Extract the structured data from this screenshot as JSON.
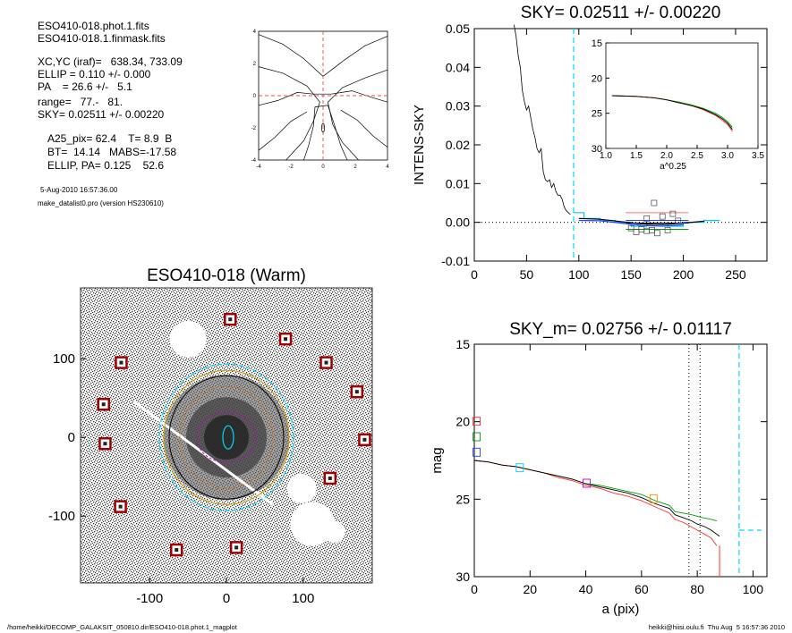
{
  "header_info": {
    "file1": "ESO410-018.phot.1.fits",
    "file2": "ESO410-018.1.finmask.fits",
    "xcyc": "XC,YC (iraf)=   638.34, 733.09",
    "ellip": "ELLIP = 0.110 +/- 0.000",
    "pa": "PA    = 26.6 +/-   5.1",
    "range": "range=   77.-   81.",
    "sky": "SKY= 0.02511 +/- 0.00220",
    "a25": "A25_pix= 62.4    T= 8.9  B",
    "bt": "BT=  14.14   MABS=-17.58",
    "ellip_pa": "ELLIP, PA= 0.125    52.6",
    "date": "5-Aug-2010 16:57:36.00",
    "program": "make_datalist0.pro (version HS230610)"
  },
  "footer": {
    "left": "/home/heikki/DECOMP_GALAKSIT_050810.dir/ESO410-018.phot.1_magplot",
    "right": "heikki@hiisi.oulu.fi  Thu Aug  5 16:57:36 2010"
  },
  "chart_data": [
    {
      "type": "line",
      "name": "contour",
      "xlim": [
        -4,
        4
      ],
      "ylim": [
        -4,
        4
      ],
      "xticks": [
        "-4",
        "-2",
        "0",
        "2",
        "4"
      ],
      "yticks": [
        "4",
        "2",
        "0",
        "-2",
        "-4"
      ],
      "contours": [
        [
          [
            -4,
            3.8
          ],
          [
            -2.5,
            3.2
          ],
          [
            -1.2,
            2.3
          ],
          [
            0,
            1.2
          ],
          [
            1.3,
            2.2
          ],
          [
            2.6,
            3.1
          ],
          [
            4,
            3.7
          ]
        ],
        [
          [
            -4,
            1.8
          ],
          [
            -2.5,
            1.4
          ],
          [
            -1,
            0.6
          ],
          [
            -0.2,
            -0.4
          ],
          [
            -0.6,
            -1.6
          ],
          [
            -1.2,
            -2.8
          ],
          [
            -2.3,
            -4
          ]
        ],
        [
          [
            4,
            1.6
          ],
          [
            2.6,
            1.1
          ],
          [
            1.2,
            0.5
          ],
          [
            0.3,
            -0.4
          ],
          [
            0.6,
            -1.8
          ],
          [
            1.2,
            -2.9
          ],
          [
            2.2,
            -4
          ]
        ],
        [
          [
            -4,
            -0.6
          ],
          [
            -2.8,
            -0.3
          ],
          [
            -1.6,
            0.2
          ],
          [
            -0.6,
            0.1
          ],
          [
            0.5,
            0.1
          ],
          [
            1.8,
            0.3
          ],
          [
            3,
            -0.1
          ],
          [
            4,
            -0.4
          ]
        ],
        [
          [
            -1.2,
            -4
          ],
          [
            -0.9,
            -3.1
          ],
          [
            -0.6,
            -1.9
          ],
          [
            -0.5,
            -0.7
          ],
          [
            0.3,
            -0.6
          ],
          [
            0.7,
            -1.8
          ],
          [
            1.1,
            -3.1
          ],
          [
            1.5,
            -4
          ]
        ],
        [
          [
            -4,
            -3.4
          ],
          [
            -3,
            -2.6
          ],
          [
            -2,
            -1.6
          ],
          [
            -1,
            -1
          ]
        ],
        [
          [
            4,
            -3.2
          ],
          [
            3.1,
            -2.5
          ],
          [
            2.1,
            -1.5
          ],
          [
            1.1,
            -0.9
          ]
        ]
      ]
    },
    {
      "type": "line",
      "title": "SKY= 0.02511 +/- 0.00220",
      "xlabel": "",
      "ylabel": "INTENS-SKY",
      "xlim": [
        0,
        280
      ],
      "ylim": [
        -0.01,
        0.05
      ],
      "xticks": [
        "0",
        "50",
        "100",
        "150",
        "200",
        "250"
      ],
      "yticks": [
        "0.05",
        "0.04",
        "0.03",
        "0.02",
        "0.01",
        "0.00",
        "-0.01"
      ],
      "profile": [
        [
          38,
          0.051
        ],
        [
          40,
          0.048
        ],
        [
          42,
          0.043
        ],
        [
          44,
          0.04
        ],
        [
          46,
          0.034
        ],
        [
          48,
          0.031
        ],
        [
          50,
          0.029
        ],
        [
          52,
          0.03
        ],
        [
          54,
          0.027
        ],
        [
          56,
          0.024
        ],
        [
          58,
          0.022
        ],
        [
          60,
          0.019
        ],
        [
          62,
          0.018
        ],
        [
          64,
          0.019
        ],
        [
          66,
          0.013
        ],
        [
          68,
          0.011
        ],
        [
          70,
          0.0105
        ],
        [
          72,
          0.011
        ],
        [
          74,
          0.009
        ],
        [
          76,
          0.01
        ],
        [
          78,
          0.008
        ],
        [
          80,
          0.007
        ],
        [
          82,
          0.007
        ],
        [
          84,
          0.006
        ],
        [
          86,
          0.004
        ],
        [
          88,
          0.003
        ],
        [
          90,
          0.0025
        ],
        [
          92,
          0.002
        ]
      ],
      "sky_line_x": 95,
      "sky_level": 0.0,
      "sky_series": [
        {
          "name": "cyan",
          "color": "#00c8ff",
          "points": [
            [
              95,
              0.0025
            ],
            [
              105,
              0.0025
            ],
            [
              105,
              0.001
            ],
            [
              120,
              0.001
            ],
            [
              120,
              0.0005
            ],
            [
              135,
              0.0005
            ],
            [
              135,
              0.0
            ],
            [
              150,
              0.0
            ],
            [
              150,
              -0.001
            ],
            [
              165,
              -0.001
            ],
            [
              165,
              -0.0005
            ],
            [
              185,
              -0.0005
            ],
            [
              185,
              -0.001
            ],
            [
              200,
              -0.001
            ],
            [
              200,
              0.0
            ],
            [
              220,
              0.0
            ],
            [
              220,
              0.0005
            ],
            [
              235,
              0.0005
            ]
          ]
        },
        {
          "name": "black",
          "color": "#000000",
          "points": [
            [
              100,
              0.001
            ],
            [
              120,
              0.0008
            ],
            [
              140,
              0.0002
            ],
            [
              160,
              -0.0004
            ],
            [
              180,
              -0.0006
            ],
            [
              200,
              -0.0002
            ],
            [
              220,
              0.0003
            ]
          ]
        },
        {
          "name": "blue",
          "color": "#2040ff",
          "points": [
            [
              100,
              0.0005
            ],
            [
              120,
              0.0004
            ],
            [
              140,
              -0.0002
            ],
            [
              160,
              -0.0008
            ],
            [
              180,
              -0.001
            ],
            [
              200,
              -0.0006
            ]
          ]
        }
      ],
      "sky_segments": [
        {
          "color": "#ff7070",
          "x": [
            145,
            205
          ],
          "y": 0.0025
        },
        {
          "color": "#00a000",
          "x": [
            145,
            205
          ],
          "y": -0.0018
        },
        {
          "color": "#2040ff",
          "x": [
            145,
            205
          ],
          "y": 0.0005
        },
        {
          "color": "#000000",
          "x": [
            145,
            205
          ],
          "y": -0.0002
        }
      ],
      "sky_boxes": [
        [
          150,
          -0.0015
        ],
        [
          155,
          -0.0025
        ],
        [
          160,
          -0.0018
        ],
        [
          165,
          -0.0022
        ],
        [
          170,
          -0.002
        ],
        [
          175,
          -0.0028
        ],
        [
          180,
          0.0015
        ],
        [
          185,
          -0.002
        ],
        [
          190,
          0.0022
        ],
        [
          195,
          0.0004
        ],
        [
          172,
          0.005
        ],
        [
          165,
          0.001
        ]
      ]
    },
    {
      "type": "line",
      "name": "inset",
      "xlabel": "a^0.25",
      "xlim": [
        1.0,
        3.5
      ],
      "ylim": [
        15,
        30
      ],
      "xticks": [
        "1.0",
        "1.5",
        "2.0",
        "2.5",
        "3.0",
        "3.5"
      ],
      "yticks": [
        "15",
        "20",
        "25",
        "30"
      ],
      "series": [
        {
          "name": "green",
          "color": "#00a000",
          "points": [
            [
              1.1,
              22.5
            ],
            [
              1.5,
              22.6
            ],
            [
              1.8,
              22.8
            ],
            [
              2.0,
              23.1
            ],
            [
              2.2,
              23.4
            ],
            [
              2.4,
              23.8
            ],
            [
              2.6,
              24.3
            ],
            [
              2.8,
              25.0
            ],
            [
              2.9,
              25.5
            ],
            [
              3.0,
              26.2
            ],
            [
              3.08,
              27.0
            ]
          ]
        },
        {
          "name": "red",
          "color": "#ff3030",
          "points": [
            [
              1.1,
              22.5
            ],
            [
              1.5,
              22.6
            ],
            [
              1.8,
              22.8
            ],
            [
              2.0,
              23.1
            ],
            [
              2.2,
              23.5
            ],
            [
              2.4,
              23.9
            ],
            [
              2.6,
              24.5
            ],
            [
              2.8,
              25.3
            ],
            [
              2.9,
              25.9
            ],
            [
              3.0,
              26.6
            ],
            [
              3.08,
              27.6
            ]
          ]
        },
        {
          "name": "black",
          "color": "#000000",
          "points": [
            [
              1.1,
              22.5
            ],
            [
              1.5,
              22.6
            ],
            [
              1.8,
              22.8
            ],
            [
              2.0,
              23.1
            ],
            [
              2.2,
              23.5
            ],
            [
              2.4,
              23.9
            ],
            [
              2.6,
              24.4
            ],
            [
              2.8,
              25.2
            ],
            [
              2.9,
              25.7
            ],
            [
              3.0,
              26.4
            ],
            [
              3.08,
              27.3
            ]
          ]
        }
      ]
    },
    {
      "type": "line",
      "title": "SKY_m=  0.02756 +/- 0.01117",
      "xlabel": "a (pix)",
      "ylabel": "mag",
      "xlim": [
        0,
        105
      ],
      "ylim": [
        15,
        30
      ],
      "xticks": [
        "0",
        "20",
        "40",
        "60",
        "80",
        "100"
      ],
      "yticks": [
        "15",
        "20",
        "25",
        "30"
      ],
      "series": [
        {
          "name": "green",
          "color": "#00a000",
          "points": [
            [
              0,
              22.5
            ],
            [
              5,
              22.6
            ],
            [
              10,
              22.8
            ],
            [
              15,
              22.9
            ],
            [
              20,
              23.1
            ],
            [
              25,
              23.3
            ],
            [
              30,
              23.5
            ],
            [
              35,
              23.7
            ],
            [
              40,
              24.0
            ],
            [
              45,
              24.1
            ],
            [
              50,
              24.3
            ],
            [
              55,
              24.5
            ],
            [
              60,
              24.7
            ],
            [
              65,
              25.1
            ],
            [
              70,
              25.4
            ],
            [
              72,
              25.8
            ],
            [
              75,
              25.9
            ],
            [
              78,
              26.0
            ],
            [
              80,
              26.1
            ],
            [
              82,
              26.2
            ],
            [
              85,
              26.3
            ],
            [
              87,
              26.4
            ]
          ]
        },
        {
          "name": "red",
          "color": "#ff3030",
          "points": [
            [
              0,
              22.5
            ],
            [
              5,
              22.6
            ],
            [
              10,
              22.8
            ],
            [
              15,
              22.9
            ],
            [
              20,
              23.1
            ],
            [
              25,
              23.3
            ],
            [
              30,
              23.6
            ],
            [
              35,
              23.8
            ],
            [
              40,
              24.1
            ],
            [
              45,
              24.3
            ],
            [
              50,
              24.6
            ],
            [
              55,
              24.8
            ],
            [
              60,
              25.1
            ],
            [
              65,
              25.5
            ],
            [
              70,
              25.9
            ],
            [
              72,
              26.3
            ],
            [
              75,
              26.5
            ],
            [
              78,
              26.8
            ],
            [
              80,
              27.0
            ],
            [
              83,
              27.3
            ],
            [
              85,
              27.5
            ],
            [
              87,
              28.0
            ]
          ]
        },
        {
          "name": "black",
          "color": "#000000",
          "points": [
            [
              0,
              22.5
            ],
            [
              5,
              22.6
            ],
            [
              10,
              22.8
            ],
            [
              15,
              22.9
            ],
            [
              20,
              23.1
            ],
            [
              25,
              23.3
            ],
            [
              30,
              23.5
            ],
            [
              35,
              23.7
            ],
            [
              40,
              24.0
            ],
            [
              45,
              24.2
            ],
            [
              50,
              24.4
            ],
            [
              55,
              24.6
            ],
            [
              60,
              24.9
            ],
            [
              65,
              25.3
            ],
            [
              70,
              25.6
            ],
            [
              72,
              26.0
            ],
            [
              75,
              26.2
            ],
            [
              78,
              26.4
            ],
            [
              80,
              26.6
            ],
            [
              83,
              26.8
            ],
            [
              85,
              27.0
            ],
            [
              88,
              27.4
            ]
          ]
        }
      ],
      "marker_boxes": [
        {
          "color": "#ff3030",
          "x": 0.5,
          "y": 20.0
        },
        {
          "color": "#00a000",
          "x": 0.5,
          "y": 21.0
        },
        {
          "color": "#2040ff",
          "x": 0.5,
          "y": 22.0
        },
        {
          "color": "#00c8ff",
          "x": 16,
          "y": 23.0
        },
        {
          "color": "#c000c0",
          "x": 40,
          "y": 24.0
        },
        {
          "color": "#ff9000",
          "x": 64,
          "y": 25.0
        }
      ],
      "vlines_dotted": [
        77,
        81
      ],
      "vline_dashed_cyan": 95,
      "hline_cyan": {
        "x": [
          95,
          103
        ],
        "y": 27.0
      },
      "red_drop_x": 88
    },
    {
      "type": "scatter",
      "title": "ESO410-018 (Warm)",
      "xlim": [
        -190,
        190
      ],
      "ylim": [
        -185,
        190
      ],
      "xticks": [
        "-100",
        "0",
        "100"
      ],
      "yticks": [
        "100",
        "0",
        "-100"
      ],
      "stars": [
        [
          5,
          150
        ],
        [
          77,
          125
        ],
        [
          -137,
          95
        ],
        [
          130,
          95
        ],
        [
          -160,
          42
        ],
        [
          170,
          58
        ],
        [
          -158,
          -8
        ],
        [
          180,
          -3
        ],
        [
          135,
          -52
        ],
        [
          -138,
          -88
        ],
        [
          -65,
          -143
        ],
        [
          13,
          -140
        ]
      ],
      "masks": [
        [
          -50,
          125,
          25
        ],
        [
          -100,
          -2,
          0
        ],
        [
          112,
          -110,
          30
        ],
        [
          98,
          -65,
          20
        ],
        [
          140,
          -120,
          15
        ]
      ],
      "galaxy_center": [
        0,
        0
      ],
      "colors": {
        "bg": "#ffffff",
        "noise": "#3a3a3a",
        "star_box": "#a00000"
      }
    }
  ]
}
